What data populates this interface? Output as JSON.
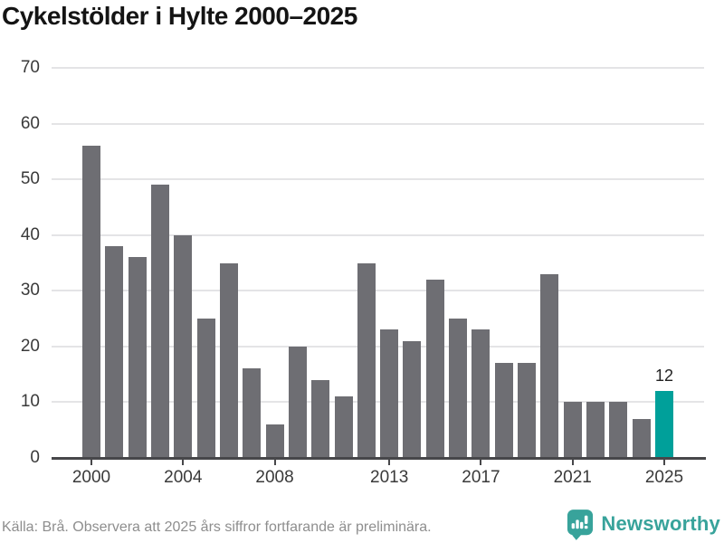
{
  "title": "Cykelstölder i Hylte 2000–2025",
  "footer": {
    "source": "Källa: Brå. Observera att 2025 års siffror fortfarande är preliminära.",
    "brand": "Newsworthy"
  },
  "colors": {
    "bar": "#6e6e73",
    "highlight": "#00a09a",
    "grid": "#e4e4e6",
    "axis": "#47474a",
    "label": "#3a3a3a",
    "title": "#141414",
    "footer_text": "#8e8e8e",
    "brand_teal": "#38a39b"
  },
  "chart_data": {
    "type": "bar",
    "title": "Cykelstölder i Hylte 2000–2025",
    "categories": [
      2000,
      2001,
      2002,
      2003,
      2004,
      2005,
      2006,
      2007,
      2008,
      2009,
      2010,
      2011,
      2012,
      2013,
      2014,
      2015,
      2016,
      2017,
      2018,
      2019,
      2020,
      2021,
      2022,
      2023,
      2024,
      2025
    ],
    "values": [
      56,
      38,
      36,
      49,
      40,
      25,
      35,
      16,
      6,
      20,
      14,
      11,
      35,
      23,
      21,
      32,
      25,
      23,
      17,
      17,
      33,
      10,
      10,
      10,
      7,
      12
    ],
    "highlight_category": 2025,
    "highlight_value_label": "12",
    "xlabel": "",
    "ylabel": "",
    "ylim": [
      0,
      70
    ],
    "yticks": [
      0,
      10,
      20,
      30,
      40,
      50,
      60,
      70
    ],
    "xtick_labels": [
      "2000",
      "2004",
      "2008",
      "2013",
      "2017",
      "2021",
      "2025"
    ],
    "grid": true,
    "legend": false,
    "bar_color_note": "all bars gray except 2025 highlighted teal"
  }
}
